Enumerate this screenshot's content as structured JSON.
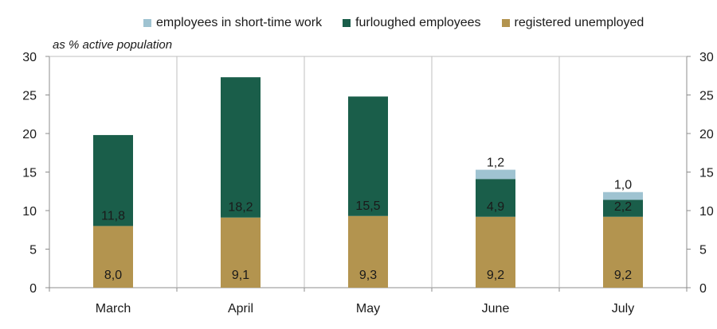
{
  "chart_data": {
    "type": "bar",
    "stacked": true,
    "subtitle": "as % active population",
    "categories": [
      "March",
      "April",
      "May",
      "June",
      "July"
    ],
    "series": [
      {
        "name": "registered unemployed",
        "color": "#b3944f",
        "values": [
          8.0,
          9.1,
          9.3,
          9.2,
          9.2
        ],
        "labels": [
          "8,0",
          "9,1",
          "9,3",
          "9,2",
          "9,2"
        ]
      },
      {
        "name": "furloughed employees",
        "color": "#1a5e4a",
        "values": [
          11.8,
          18.2,
          15.5,
          4.9,
          2.2
        ],
        "labels": [
          "11,8",
          "18,2",
          "15,5",
          "4,9",
          "2,2"
        ]
      },
      {
        "name": "employees in short-time work",
        "color": "#9fc3d1",
        "values": [
          0,
          0,
          0,
          1.2,
          1.0
        ],
        "labels": [
          "",
          "",
          "",
          "1,2",
          "1,0"
        ]
      }
    ],
    "ylim": [
      0,
      30
    ],
    "yticks": [
      0,
      5,
      10,
      15,
      20,
      25,
      30
    ],
    "secondary_y_axis": true,
    "grid": "vertical category separators",
    "legend_position": "top"
  }
}
